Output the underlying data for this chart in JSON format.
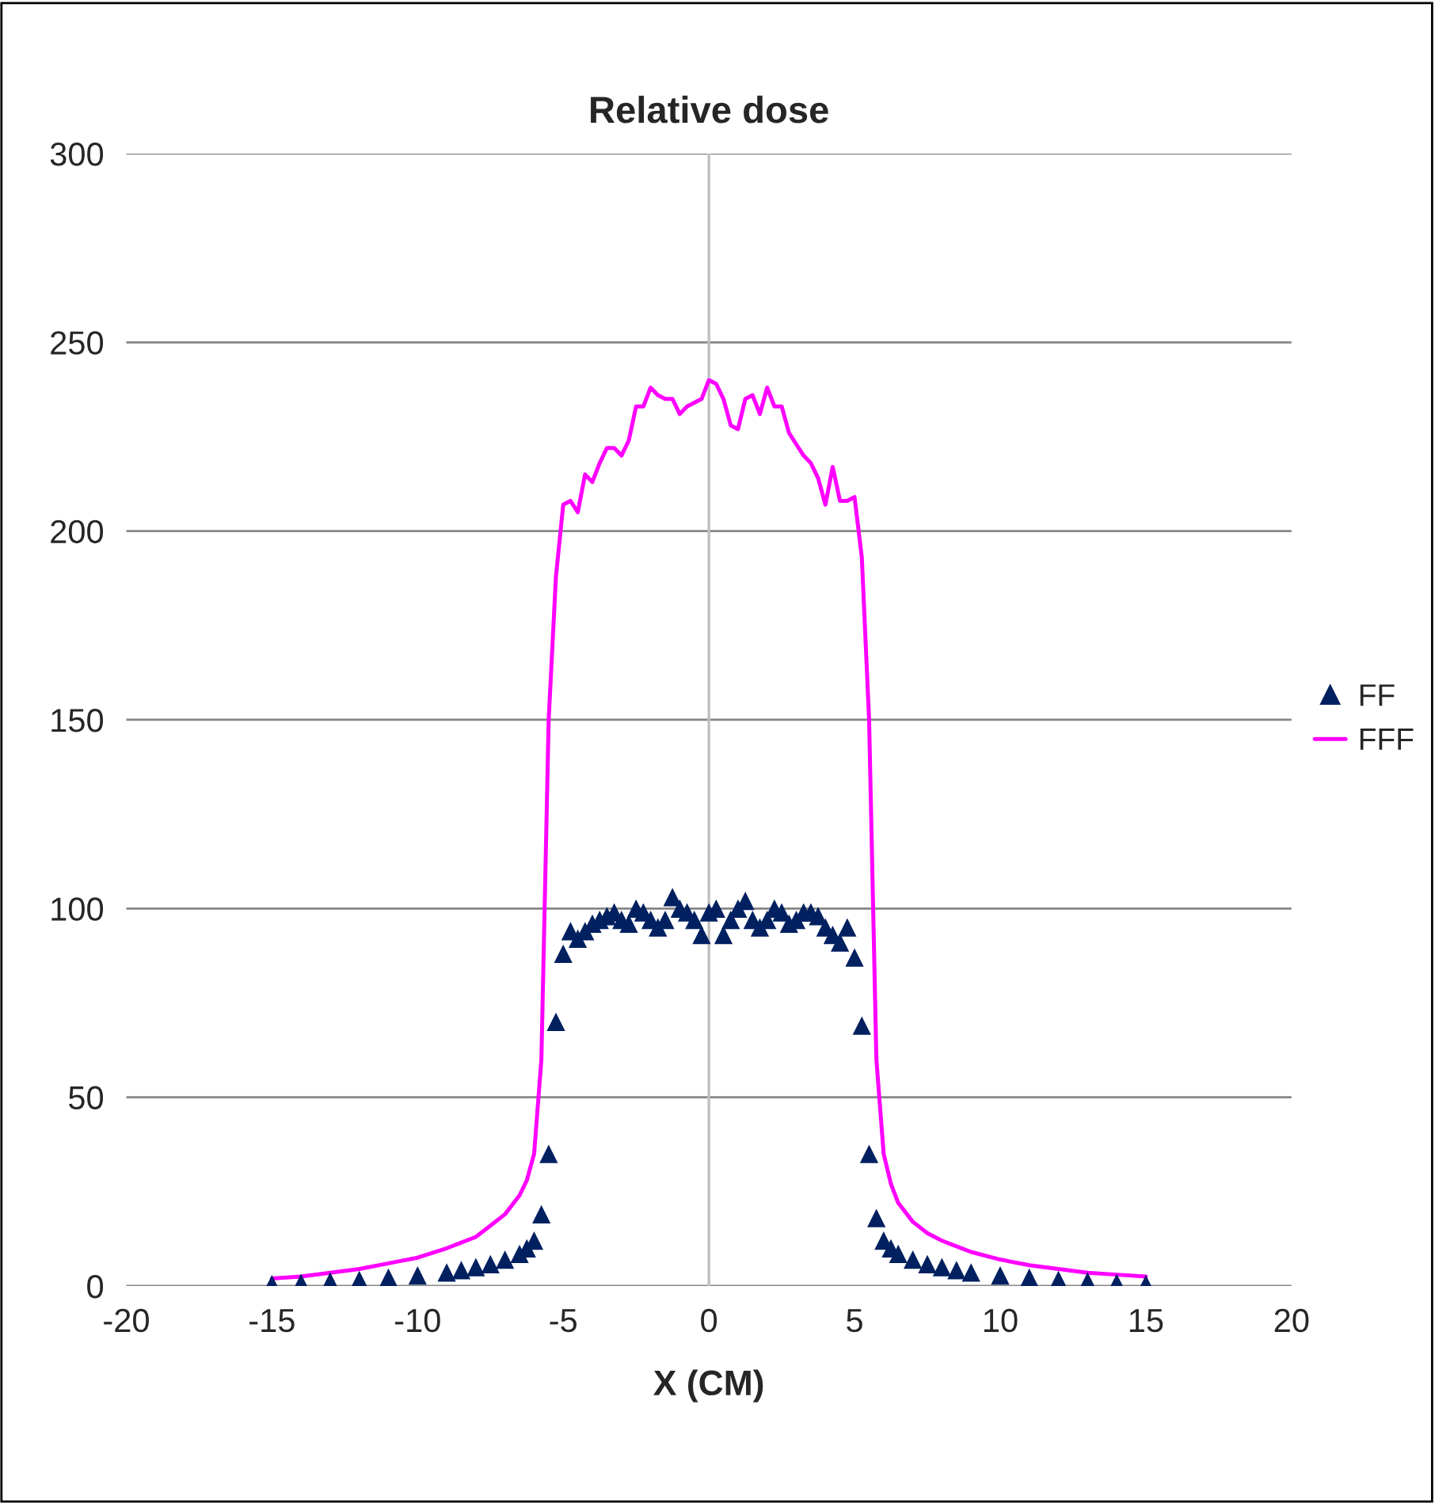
{
  "chart_data": {
    "type": "scatter",
    "title": "Relative dose",
    "xlabel": "X (CM)",
    "xlim": [
      -20,
      20
    ],
    "xticks": [
      -20,
      -15,
      -10,
      -5,
      0,
      5,
      10,
      15,
      20
    ],
    "ylim": [
      0,
      300
    ],
    "yticks": [
      0,
      50,
      100,
      150,
      200,
      250,
      300
    ],
    "grid": "y",
    "legend": "right",
    "ref_lines": [
      {
        "axis": "x",
        "value": 0,
        "color": "#bfbfbf"
      }
    ],
    "series": [
      {
        "name": "FF",
        "marker": "triangle",
        "color": "#002060",
        "x": [
          -15,
          -14,
          -13,
          -12,
          -11,
          -10,
          -9,
          -8.5,
          -8,
          -7.5,
          -7,
          -6.5,
          -6.25,
          -6,
          -5.75,
          -5.5,
          -5.25,
          -5,
          -4.75,
          -4.5,
          -4.25,
          -4,
          -3.75,
          -3.5,
          -3.25,
          -3,
          -2.75,
          -2.5,
          -2.25,
          -2,
          -1.75,
          -1.5,
          -1.25,
          -1,
          -0.75,
          -0.5,
          -0.25,
          0,
          0.25,
          0.5,
          0.75,
          1,
          1.25,
          1.5,
          1.75,
          2,
          2.25,
          2.5,
          2.75,
          3,
          3.25,
          3.5,
          3.75,
          4,
          4.25,
          4.5,
          4.75,
          5,
          5.25,
          5.5,
          5.75,
          6,
          6.25,
          6.5,
          7,
          7.5,
          8,
          8.5,
          9,
          10,
          11,
          12,
          13,
          14,
          15
        ],
        "values": [
          0.5,
          0.8,
          1.2,
          1.6,
          2.2,
          2.8,
          3.6,
          4.2,
          5,
          5.8,
          7,
          8.5,
          10,
          12,
          19,
          35,
          70,
          88,
          94,
          92,
          94,
          96,
          97,
          98,
          99,
          97,
          96,
          100,
          99,
          97,
          95,
          97,
          103,
          100,
          99,
          97,
          93,
          99,
          100,
          93,
          97,
          100,
          102,
          97,
          95,
          97,
          100,
          99,
          96,
          97,
          99,
          99,
          98,
          95,
          93,
          91,
          95,
          87,
          69,
          35,
          18,
          12,
          10,
          8.5,
          7,
          5.8,
          5,
          4.2,
          3.6,
          2.8,
          2.2,
          1.6,
          1.2,
          0.8,
          0.5
        ]
      },
      {
        "name": "FFF",
        "type": "line",
        "marker": "none",
        "line_style": "solid",
        "color": "#ff00ff",
        "x": [
          -15,
          -14,
          -13,
          -12,
          -11,
          -10,
          -9,
          -8.5,
          -8,
          -7.5,
          -7,
          -6.5,
          -6.25,
          -6,
          -5.75,
          -5.5,
          -5.25,
          -5,
          -4.75,
          -4.5,
          -4.25,
          -4,
          -3.75,
          -3.5,
          -3.25,
          -3,
          -2.75,
          -2.5,
          -2.25,
          -2,
          -1.75,
          -1.5,
          -1.25,
          -1,
          -0.75,
          -0.5,
          -0.25,
          0,
          0.25,
          0.5,
          0.75,
          1,
          1.25,
          1.5,
          1.75,
          2,
          2.25,
          2.5,
          2.75,
          3,
          3.25,
          3.5,
          3.75,
          4,
          4.25,
          4.5,
          4.75,
          5,
          5.25,
          5.5,
          5.75,
          6,
          6.25,
          6.5,
          7,
          7.5,
          8,
          8.5,
          9,
          10,
          11,
          12,
          13,
          14,
          15
        ],
        "values": [
          2,
          2.5,
          3.5,
          4.5,
          6,
          7.5,
          10,
          11.5,
          13,
          16,
          19,
          24,
          28,
          35,
          60,
          150,
          188,
          207,
          208,
          205,
          215,
          213,
          218,
          222,
          222,
          220,
          224,
          233,
          233,
          238,
          236,
          235,
          235,
          231,
          233,
          234,
          235,
          240,
          239,
          235,
          228,
          227,
          235,
          236,
          231,
          238,
          233,
          233,
          226,
          223,
          220,
          218,
          214,
          207,
          217,
          208,
          208,
          209,
          193,
          150,
          60,
          35,
          27,
          22,
          17,
          14,
          12,
          10.5,
          9,
          7,
          5.5,
          4.5,
          3.5,
          3,
          2.5
        ]
      }
    ]
  }
}
